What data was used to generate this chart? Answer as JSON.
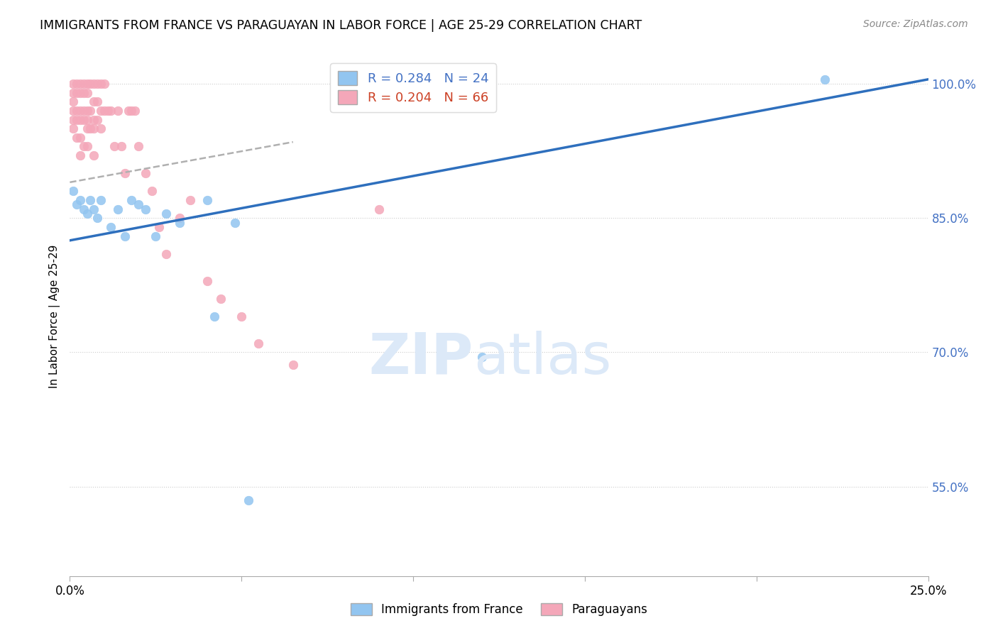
{
  "title": "IMMIGRANTS FROM FRANCE VS PARAGUAYAN IN LABOR FORCE | AGE 25-29 CORRELATION CHART",
  "source": "Source: ZipAtlas.com",
  "ylabel": "In Labor Force | Age 25-29",
  "xlim": [
    0.0,
    0.25
  ],
  "ylim": [
    0.45,
    1.03
  ],
  "x_ticks": [
    0.0,
    0.05,
    0.1,
    0.15,
    0.2,
    0.25
  ],
  "x_tick_labels": [
    "0.0%",
    "",
    "",
    "",
    "",
    "25.0%"
  ],
  "y_ticks": [
    0.55,
    0.7,
    0.85,
    1.0
  ],
  "y_tick_labels": [
    "55.0%",
    "70.0%",
    "85.0%",
    "100.0%"
  ],
  "blue_color": "#92c5f0",
  "pink_color": "#f4a7b9",
  "blue_line_color": "#2e6fbd",
  "pink_line_color": "#b0b0b0",
  "legend_blue_label": "R = 0.284   N = 24",
  "legend_pink_label": "R = 0.204   N = 66",
  "legend_france_label": "Immigrants from France",
  "legend_paraguayan_label": "Paraguayans",
  "blue_scatter_x": [
    0.001,
    0.002,
    0.003,
    0.004,
    0.005,
    0.006,
    0.007,
    0.008,
    0.009,
    0.012,
    0.014,
    0.016,
    0.018,
    0.02,
    0.022,
    0.025,
    0.028,
    0.032,
    0.04,
    0.042,
    0.048,
    0.052,
    0.12,
    0.22
  ],
  "blue_scatter_y": [
    0.88,
    0.865,
    0.87,
    0.86,
    0.855,
    0.87,
    0.86,
    0.85,
    0.87,
    0.84,
    0.86,
    0.83,
    0.87,
    0.865,
    0.86,
    0.83,
    0.855,
    0.845,
    0.87,
    0.74,
    0.845,
    0.535,
    0.695,
    1.005
  ],
  "pink_scatter_x": [
    0.001,
    0.001,
    0.001,
    0.001,
    0.001,
    0.001,
    0.002,
    0.002,
    0.002,
    0.002,
    0.002,
    0.003,
    0.003,
    0.003,
    0.003,
    0.003,
    0.003,
    0.004,
    0.004,
    0.004,
    0.004,
    0.004,
    0.005,
    0.005,
    0.005,
    0.005,
    0.005,
    0.005,
    0.006,
    0.006,
    0.006,
    0.007,
    0.007,
    0.007,
    0.007,
    0.007,
    0.008,
    0.008,
    0.008,
    0.009,
    0.009,
    0.009,
    0.01,
    0.01,
    0.011,
    0.012,
    0.013,
    0.014,
    0.015,
    0.016,
    0.017,
    0.018,
    0.019,
    0.02,
    0.022,
    0.024,
    0.026,
    0.028,
    0.032,
    0.035,
    0.04,
    0.044,
    0.05,
    0.055,
    0.065,
    0.09
  ],
  "pink_scatter_y": [
    1.0,
    0.99,
    0.98,
    0.97,
    0.96,
    0.95,
    1.0,
    0.99,
    0.97,
    0.96,
    0.94,
    1.0,
    0.99,
    0.97,
    0.96,
    0.94,
    0.92,
    1.0,
    0.99,
    0.97,
    0.96,
    0.93,
    1.0,
    0.99,
    0.97,
    0.96,
    0.95,
    0.93,
    1.0,
    0.97,
    0.95,
    1.0,
    0.98,
    0.96,
    0.95,
    0.92,
    1.0,
    0.98,
    0.96,
    1.0,
    0.97,
    0.95,
    1.0,
    0.97,
    0.97,
    0.97,
    0.93,
    0.97,
    0.93,
    0.9,
    0.97,
    0.97,
    0.97,
    0.93,
    0.9,
    0.88,
    0.84,
    0.81,
    0.85,
    0.87,
    0.78,
    0.76,
    0.74,
    0.71,
    0.686,
    0.86
  ],
  "blue_trend_x": [
    0.0,
    0.25
  ],
  "blue_trend_y": [
    0.825,
    1.005
  ],
  "pink_trend_x": [
    0.0,
    0.065
  ],
  "pink_trend_y": [
    0.89,
    0.935
  ],
  "background_color": "#ffffff",
  "grid_color": "#cccccc",
  "right_tick_color": "#4472c4",
  "marker_size": 9
}
